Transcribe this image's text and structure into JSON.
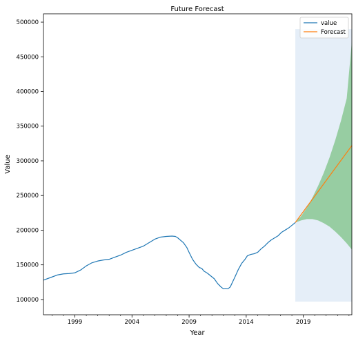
{
  "chart_data": {
    "type": "line",
    "title": "Future Forecast",
    "xlabel": "Year",
    "ylabel": "Value",
    "xlim": [
      1996.25,
      2023.25
    ],
    "ylim": [
      78000,
      512000
    ],
    "x_ticks": [
      1999,
      2004,
      2009,
      2014,
      2019
    ],
    "x_tick_labels": [
      "1999",
      "2004",
      "2009",
      "2014",
      "2019"
    ],
    "x_minor_ticks": [
      1997,
      1998,
      2000,
      2001,
      2002,
      2003,
      2005,
      2006,
      2007,
      2008,
      2010,
      2011,
      2012,
      2013,
      2015,
      2016,
      2017,
      2018,
      2020,
      2021,
      2022,
      2023
    ],
    "y_ticks": [
      100000,
      150000,
      200000,
      250000,
      300000,
      350000,
      400000,
      450000,
      500000
    ],
    "y_tick_labels": [
      "100000",
      "150000",
      "200000",
      "250000",
      "300000",
      "350000",
      "400000",
      "450000",
      "500000"
    ],
    "legend_position": "top-right",
    "colors": {
      "value": "#1f77b4",
      "forecast": "#ff7f0e",
      "confidence_band": "#2ca02c",
      "shaded_region": "#dce8f5"
    },
    "shaded_region": {
      "x": [
        2018.3,
        2023.25
      ],
      "y": [
        97000,
        490000
      ]
    },
    "series": [
      {
        "name": "value",
        "x": [
          1996.25,
          1997,
          1997.5,
          1998,
          1998.5,
          1999,
          1999.5,
          2000,
          2000.5,
          2001,
          2001.5,
          2002,
          2002.5,
          2003,
          2003.5,
          2004,
          2004.5,
          2005,
          2005.5,
          2006,
          2006.5,
          2007,
          2007.5,
          2007.8,
          2008,
          2008.5,
          2008.8,
          2009,
          2009.3,
          2009.6,
          2009.9,
          2010.1,
          2010.3,
          2010.6,
          2010.9,
          2011.2,
          2011.5,
          2011.8,
          2012,
          2012.2,
          2012.4,
          2012.6,
          2012.8,
          2013,
          2013.3,
          2013.6,
          2013.9,
          2014.1,
          2014.4,
          2014.7,
          2015,
          2015.3,
          2015.6,
          2015.9,
          2016.2,
          2016.5,
          2016.8,
          2017.1,
          2017.4,
          2017.7,
          2018,
          2018.3
        ],
        "y": [
          128000,
          132500,
          135500,
          137000,
          137500,
          138500,
          142500,
          148500,
          153000,
          155500,
          157000,
          158000,
          161000,
          164000,
          168000,
          171000,
          174000,
          177000,
          182000,
          187000,
          190000,
          191000,
          191500,
          191000,
          189000,
          182000,
          175000,
          168000,
          158000,
          151000,
          146000,
          145000,
          141000,
          138000,
          134000,
          130000,
          123000,
          118000,
          115500,
          116000,
          115500,
          118000,
          125000,
          132000,
          143000,
          152000,
          158000,
          163000,
          165000,
          166000,
          168000,
          173000,
          177000,
          182000,
          186000,
          189000,
          192000,
          197000,
          200000,
          203000,
          207000,
          211000
        ]
      },
      {
        "name": "Forecast",
        "x": [
          2018.3,
          2023.25
        ],
        "y": [
          211000,
          322000
        ]
      }
    ],
    "confidence_band": {
      "x": [
        2018.3,
        2018.8,
        2019.3,
        2019.8,
        2020.3,
        2020.8,
        2021.3,
        2021.8,
        2022.3,
        2022.8,
        2023.25
      ],
      "upper": [
        211000,
        220000,
        232000,
        247000,
        264000,
        283000,
        305000,
        330000,
        358000,
        390000,
        472000
      ],
      "lower": [
        211000,
        214000,
        216000,
        216000,
        214000,
        210000,
        205000,
        198000,
        190000,
        181000,
        172000
      ]
    }
  }
}
